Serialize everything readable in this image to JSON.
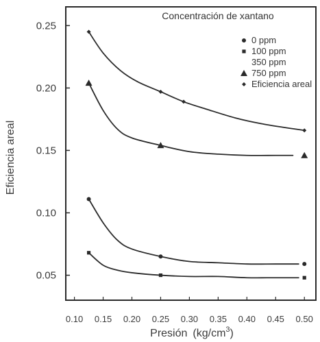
{
  "chart_data": {
    "type": "line",
    "title": "",
    "xlabel": "Presión",
    "xunit_base": "(kg/cm",
    "xunit_exp": "3",
    "xunit_close": ")",
    "ylabel": "Eficiencia areal",
    "xlim": [
      0.085,
      0.52
    ],
    "ylim": [
      0.03,
      0.265
    ],
    "xticks": [
      0.1,
      0.15,
      0.2,
      0.25,
      0.3,
      0.35,
      0.4,
      0.45,
      0.5
    ],
    "xtick_labels": [
      "0.10",
      "0.15",
      "0.20",
      "0.25",
      "0.30",
      "0.35",
      "0.40",
      "0.45",
      "0.50"
    ],
    "yticks": [
      0.05,
      0.1,
      0.15,
      0.2,
      0.25
    ],
    "ytick_labels": [
      "0.05",
      "0.10",
      "0.15",
      "0.20",
      "0.25"
    ],
    "grid": false,
    "legend": {
      "title": "Concentración de xantano",
      "placement": "top-right",
      "entries": [
        {
          "label": "0 ppm",
          "marker": "circle"
        },
        {
          "label": "100 ppm",
          "marker": "square"
        },
        {
          "label": "350 ppm",
          "marker": "none"
        },
        {
          "label": "750 ppm",
          "marker": "triangle"
        },
        {
          "label": "Eficiencia areal",
          "marker": "diamond"
        }
      ]
    },
    "series": [
      {
        "marker": "diamond",
        "color": "#2a2a2a",
        "x": [
          0.125,
          0.25,
          0.29,
          0.5
        ],
        "y": [
          0.245,
          0.197,
          0.189,
          0.166
        ],
        "curve": [
          [
            0.125,
            0.245
          ],
          [
            0.15,
            0.228
          ],
          [
            0.18,
            0.214
          ],
          [
            0.21,
            0.205
          ],
          [
            0.25,
            0.197
          ],
          [
            0.29,
            0.189
          ],
          [
            0.33,
            0.183
          ],
          [
            0.38,
            0.176
          ],
          [
            0.43,
            0.171
          ],
          [
            0.5,
            0.166
          ]
        ]
      },
      {
        "marker": "triangle",
        "color": "#2a2a2a",
        "x": [
          0.125,
          0.25,
          0.5
        ],
        "y": [
          0.204,
          0.154,
          0.146
        ],
        "curve": [
          [
            0.125,
            0.204
          ],
          [
            0.15,
            0.182
          ],
          [
            0.175,
            0.167
          ],
          [
            0.2,
            0.16
          ],
          [
            0.25,
            0.154
          ],
          [
            0.3,
            0.149
          ],
          [
            0.35,
            0.147
          ],
          [
            0.4,
            0.146
          ],
          [
            0.45,
            0.146
          ],
          [
            0.48,
            0.146
          ]
        ]
      },
      {
        "marker": "circle",
        "color": "#2a2a2a",
        "x": [
          0.125,
          0.25,
          0.5
        ],
        "y": [
          0.111,
          0.065,
          0.059
        ],
        "curve": [
          [
            0.125,
            0.111
          ],
          [
            0.15,
            0.092
          ],
          [
            0.175,
            0.078
          ],
          [
            0.2,
            0.071
          ],
          [
            0.25,
            0.065
          ],
          [
            0.3,
            0.061
          ],
          [
            0.35,
            0.06
          ],
          [
            0.4,
            0.059
          ],
          [
            0.45,
            0.059
          ],
          [
            0.49,
            0.059
          ]
        ]
      },
      {
        "marker": "square",
        "color": "#2a2a2a",
        "x": [
          0.125,
          0.25,
          0.5
        ],
        "y": [
          0.068,
          0.05,
          0.048
        ],
        "curve": [
          [
            0.125,
            0.068
          ],
          [
            0.15,
            0.058
          ],
          [
            0.175,
            0.054
          ],
          [
            0.2,
            0.052
          ],
          [
            0.25,
            0.05
          ],
          [
            0.3,
            0.049
          ],
          [
            0.35,
            0.049
          ],
          [
            0.4,
            0.048
          ],
          [
            0.45,
            0.048
          ],
          [
            0.49,
            0.048
          ]
        ]
      }
    ]
  }
}
